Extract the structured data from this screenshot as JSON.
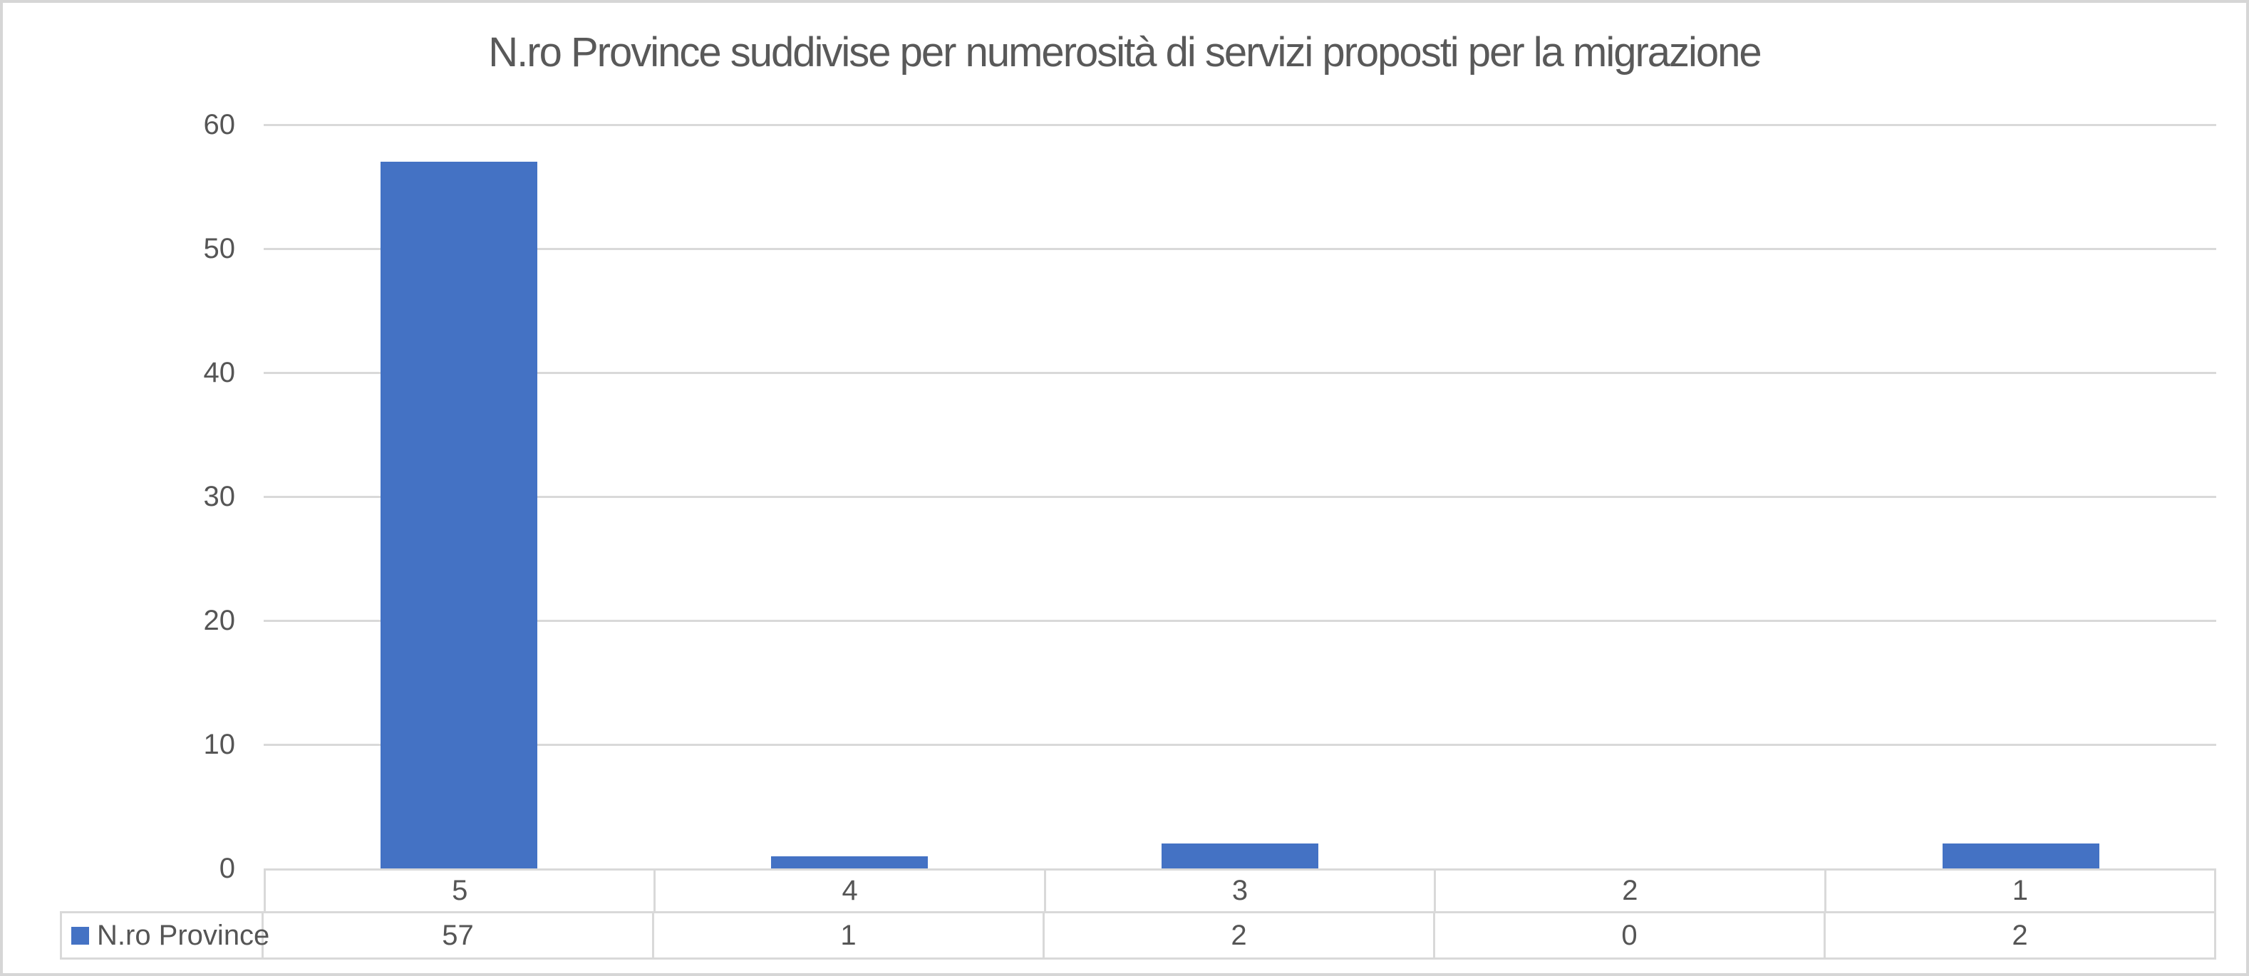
{
  "chart_data": {
    "type": "bar",
    "title": "N.ro Province suddivise per numerosità di servizi proposti per la migrazione",
    "categories": [
      "5",
      "4",
      "3",
      "2",
      "1"
    ],
    "series": [
      {
        "name": "N.ro Province",
        "values": [
          57,
          1,
          2,
          0,
          2
        ]
      }
    ],
    "xlabel": "",
    "ylabel": "",
    "ylim": [
      0,
      60
    ],
    "yticks": [
      0,
      10,
      20,
      30,
      40,
      50,
      60
    ],
    "grid": true,
    "legend_position": "data-table bottom-left",
    "colors": {
      "bar": "#4472C4",
      "gridline": "#D9D9D9",
      "table_border": "#D9D9D9",
      "axis_text": "#555555",
      "title_text": "#595959",
      "canvas_border": "#D6D6D6",
      "background": "#FFFFFF"
    }
  }
}
